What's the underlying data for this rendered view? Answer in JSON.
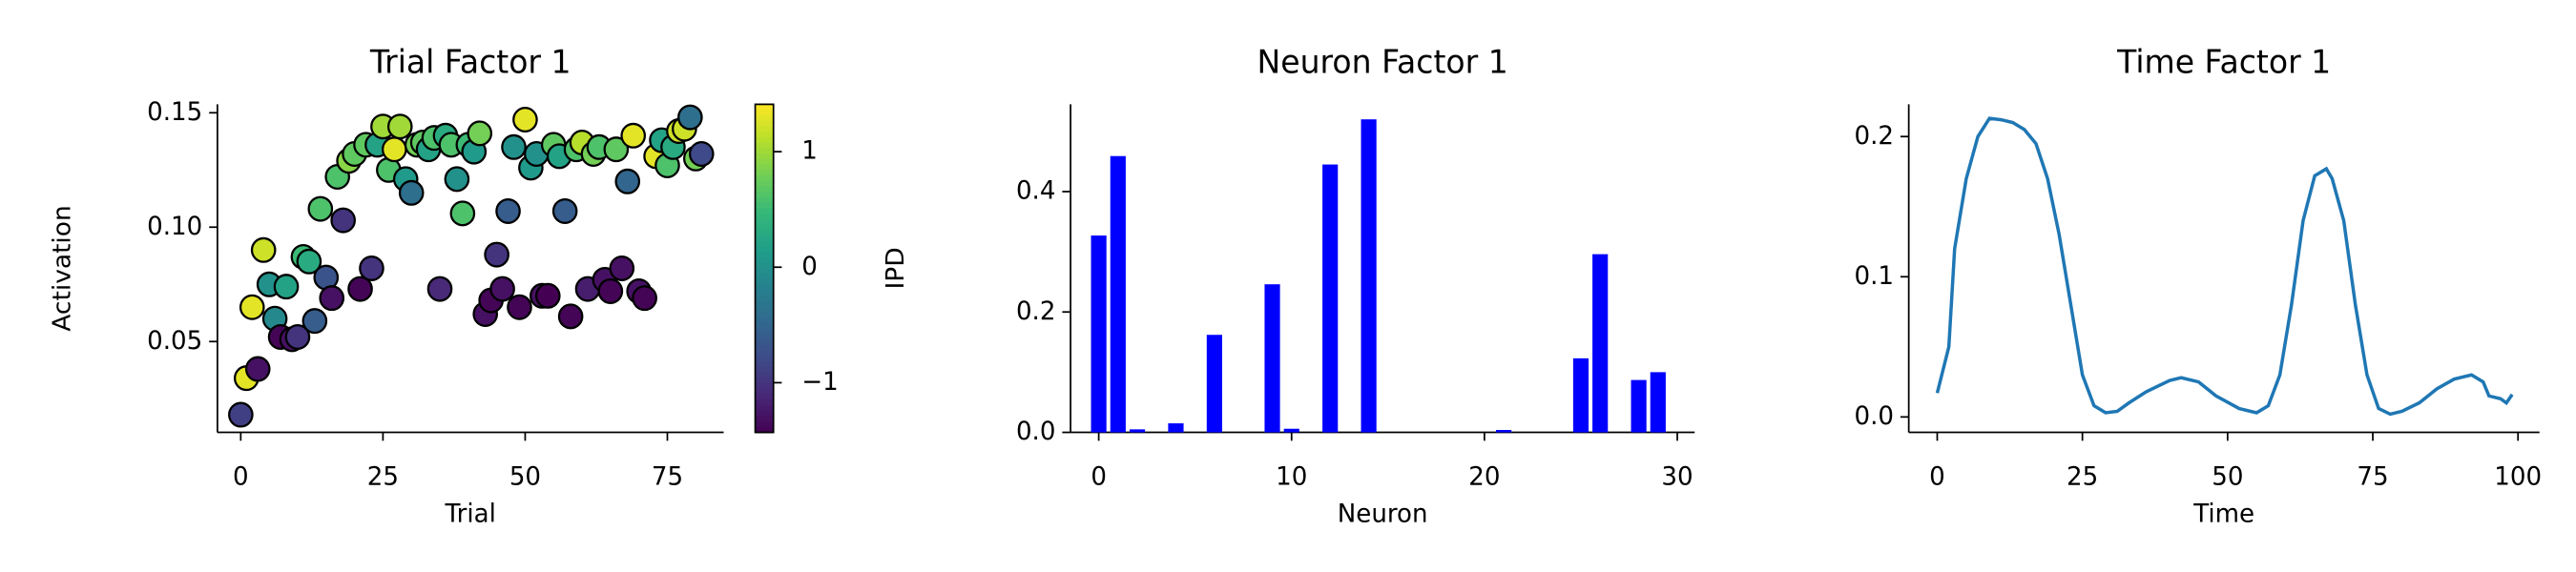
{
  "chart_data": [
    {
      "type": "scatter",
      "title": "Trial Factor 1",
      "xlabel": "Trial",
      "ylabel": "Activation",
      "x": [
        0,
        1,
        3,
        2,
        4,
        5,
        6,
        7,
        8,
        9,
        10,
        11,
        12,
        13,
        14,
        15,
        16,
        17,
        18,
        19,
        20,
        21,
        22,
        23,
        24,
        25,
        26,
        27,
        28,
        29,
        30,
        31,
        32,
        33,
        34,
        35,
        36,
        37,
        38,
        39,
        40,
        41,
        42,
        43,
        44,
        45,
        46,
        47,
        48,
        49,
        50,
        51,
        52,
        53,
        54,
        55,
        56,
        57,
        58,
        59,
        60,
        61,
        62,
        63,
        64,
        65,
        66,
        67,
        68,
        69,
        70,
        71,
        73,
        74,
        75,
        76,
        77,
        78,
        79,
        80,
        81
      ],
      "values": [
        0.018,
        0.034,
        0.038,
        0.065,
        0.09,
        0.075,
        0.06,
        0.052,
        0.074,
        0.051,
        0.052,
        0.087,
        0.085,
        0.059,
        0.108,
        0.078,
        0.069,
        0.122,
        0.103,
        0.129,
        0.132,
        0.073,
        0.136,
        0.082,
        0.136,
        0.144,
        0.125,
        0.134,
        0.144,
        0.121,
        0.115,
        0.136,
        0.137,
        0.134,
        0.139,
        0.073,
        0.14,
        0.136,
        0.121,
        0.106,
        0.136,
        0.133,
        0.141,
        0.062,
        0.068,
        0.088,
        0.073,
        0.107,
        0.135,
        0.065,
        0.147,
        0.126,
        0.132,
        0.07,
        0.07,
        0.136,
        0.131,
        0.107,
        0.061,
        0.134,
        0.137,
        0.073,
        0.132,
        0.135,
        0.077,
        0.072,
        0.134,
        0.082,
        0.12,
        0.14,
        0.072,
        0.069,
        0.131,
        0.138,
        0.127,
        0.135,
        0.142,
        0.143,
        0.148,
        0.13,
        0.132
      ],
      "color_values": [
        -0.9,
        1.3,
        -1.3,
        1.3,
        1.2,
        0.0,
        -0.1,
        -1.4,
        0.2,
        -1.3,
        -1.0,
        0.5,
        0.3,
        -0.6,
        0.6,
        -0.7,
        -1.3,
        0.6,
        -1.0,
        0.9,
        0.7,
        -1.4,
        0.7,
        -1.0,
        0.2,
        1.0,
        0.6,
        1.3,
        1.0,
        0.1,
        -0.4,
        0.8,
        0.7,
        0.2,
        0.6,
        -1.1,
        0.3,
        0.6,
        0.0,
        0.6,
        0.5,
        0.1,
        0.8,
        -1.3,
        -1.4,
        -1.0,
        -1.3,
        -0.6,
        0.0,
        -1.4,
        1.3,
        0.1,
        0.0,
        -1.3,
        -1.5,
        0.7,
        0.2,
        -0.6,
        -1.4,
        0.6,
        1.1,
        -1.2,
        0.8,
        0.6,
        -1.3,
        -1.4,
        0.7,
        -1.3,
        -0.5,
        1.3,
        -1.3,
        -1.4,
        1.3,
        0.2,
        0.6,
        0.3,
        1.2,
        1.2,
        -0.4,
        0.8,
        -0.8
      ],
      "colormap": "viridis",
      "xlim": [
        -4.1,
        84.9
      ],
      "ylim": [
        0.0103,
        0.1537
      ],
      "xticks": [
        0,
        25,
        50,
        75
      ],
      "yticks": [
        {
          "value": 0.05,
          "label": "0.05"
        },
        {
          "value": 0.1,
          "label": "0.10"
        },
        {
          "value": 0.15,
          "label": "0.15"
        }
      ],
      "colorbar": {
        "label": "IPD",
        "lim": [
          -1.43,
          1.41
        ],
        "ticks": [
          {
            "value": -1,
            "label": "−1"
          },
          0,
          1
        ]
      }
    },
    {
      "type": "bar",
      "title": "Neuron Factor 1",
      "xlabel": "Neuron",
      "color": "#0000ff",
      "x": [
        0,
        1,
        2,
        3,
        4,
        5,
        6,
        7,
        8,
        9,
        10,
        11,
        12,
        13,
        14,
        15,
        16,
        17,
        18,
        19,
        20,
        21,
        22,
        23,
        24,
        25,
        26,
        27,
        28,
        29
      ],
      "values": [
        0.327,
        0.459,
        0.005,
        0,
        0.015,
        0,
        0.162,
        0,
        0,
        0.246,
        0.006,
        0,
        0.445,
        0,
        0.52,
        0,
        0,
        0,
        0,
        0,
        0,
        0.004,
        0,
        0,
        0,
        0.123,
        0.296,
        0,
        0.087,
        0.1
      ],
      "xlim": [
        -1.46,
        30.9
      ],
      "ylim": [
        0,
        0.545
      ],
      "xticks": [
        0,
        10,
        20,
        30
      ],
      "yticks": [
        {
          "value": 0,
          "label": "0.0"
        },
        0.2,
        0.4
      ]
    },
    {
      "type": "line",
      "title": "Time Factor 1",
      "xlabel": "Time",
      "color": "#1f77b4",
      "x": [
        0,
        2,
        3,
        5,
        7,
        9,
        11,
        13,
        15,
        17,
        19,
        21,
        23,
        25,
        27,
        29,
        31,
        33,
        36,
        40,
        42,
        45,
        48,
        52,
        55,
        57,
        59,
        61,
        63,
        65,
        67,
        68,
        70,
        72,
        74,
        76,
        78,
        80,
        83,
        86,
        89,
        92,
        94,
        95,
        97,
        98,
        99
      ],
      "values": [
        0.017,
        0.05,
        0.12,
        0.17,
        0.2,
        0.213,
        0.212,
        0.21,
        0.205,
        0.195,
        0.17,
        0.13,
        0.08,
        0.03,
        0.008,
        0.003,
        0.004,
        0.01,
        0.018,
        0.026,
        0.028,
        0.025,
        0.015,
        0.006,
        0.003,
        0.008,
        0.03,
        0.08,
        0.14,
        0.172,
        0.177,
        0.17,
        0.14,
        0.08,
        0.03,
        0.006,
        0.002,
        0.004,
        0.01,
        0.02,
        0.027,
        0.03,
        0.025,
        0.015,
        0.013,
        0.01,
        0.016
      ],
      "xlim": [
        -4.9,
        103.7
      ],
      "ylim": [
        -0.011,
        0.223
      ],
      "xticks": [
        0,
        25,
        50,
        75,
        100
      ],
      "yticks": [
        {
          "value": 0,
          "label": "0.0"
        },
        0.1,
        0.2
      ]
    }
  ]
}
